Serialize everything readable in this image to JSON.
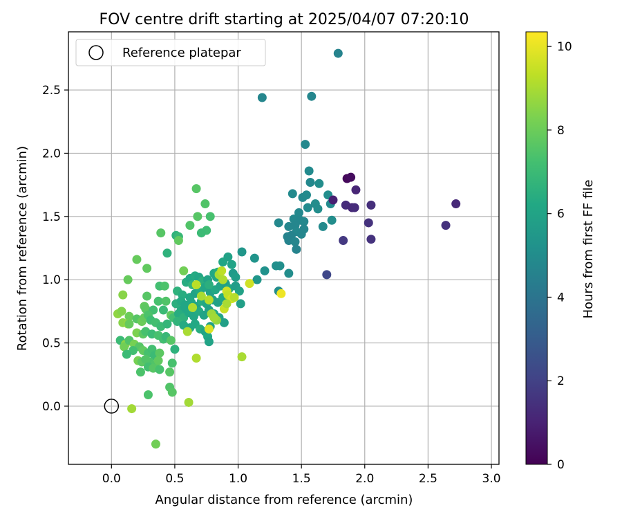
{
  "chart_data": {
    "type": "scatter",
    "title": "FOV centre drift starting at 2025/04/07 07:20:10",
    "xlabel": "Angular distance from reference (arcmin)",
    "ylabel": "Rotation from reference (arcmin)",
    "xlim": [
      -0.34,
      3.06
    ],
    "ylim": [
      -0.46,
      2.96
    ],
    "xticks": [
      0.0,
      0.5,
      1.0,
      1.5,
      2.0,
      2.5,
      3.0
    ],
    "xtick_labels": [
      "0.0",
      "0.5",
      "1.0",
      "1.5",
      "2.0",
      "2.5",
      "3.0"
    ],
    "yticks": [
      0.0,
      0.5,
      1.0,
      1.5,
      2.0,
      2.5
    ],
    "ytick_labels": [
      "0.0",
      "0.5",
      "1.0",
      "1.5",
      "2.0",
      "2.5"
    ],
    "grid": true,
    "legend": {
      "placement": "upper-left",
      "label": "Reference platepar"
    },
    "reference_point": {
      "x": 0.0,
      "y": 0.0
    },
    "colorbar": {
      "label": "Hours from first FF file",
      "min": 0,
      "max": 10.35,
      "ticks": [
        0,
        2,
        4,
        6,
        8,
        10
      ],
      "tick_labels": [
        "0",
        "2",
        "4",
        "6",
        "8",
        "10"
      ],
      "colormap": "viridis"
    },
    "points": [
      {
        "x": 1.79,
        "y": 2.79,
        "t": 4.6
      },
      {
        "x": 1.19,
        "y": 2.44,
        "t": 4.7
      },
      {
        "x": 1.58,
        "y": 2.45,
        "t": 4.7
      },
      {
        "x": 1.53,
        "y": 2.07,
        "t": 4.8
      },
      {
        "x": 1.56,
        "y": 1.86,
        "t": 4.9
      },
      {
        "x": 1.57,
        "y": 1.77,
        "t": 4.8
      },
      {
        "x": 1.43,
        "y": 1.68,
        "t": 4.9
      },
      {
        "x": 1.51,
        "y": 1.65,
        "t": 4.8
      },
      {
        "x": 1.54,
        "y": 1.67,
        "t": 4.9
      },
      {
        "x": 1.64,
        "y": 1.76,
        "t": 5.0
      },
      {
        "x": 1.71,
        "y": 1.67,
        "t": 5.0
      },
      {
        "x": 1.73,
        "y": 1.6,
        "t": 4.9
      },
      {
        "x": 1.61,
        "y": 1.6,
        "t": 5.0
      },
      {
        "x": 1.63,
        "y": 1.56,
        "t": 5.0
      },
      {
        "x": 1.55,
        "y": 1.57,
        "t": 4.9
      },
      {
        "x": 1.48,
        "y": 1.53,
        "t": 4.8
      },
      {
        "x": 1.44,
        "y": 1.48,
        "t": 4.8
      },
      {
        "x": 1.49,
        "y": 1.47,
        "t": 4.7
      },
      {
        "x": 1.52,
        "y": 1.46,
        "t": 4.8
      },
      {
        "x": 1.32,
        "y": 1.45,
        "t": 4.8
      },
      {
        "x": 1.4,
        "y": 1.42,
        "t": 4.7
      },
      {
        "x": 1.45,
        "y": 1.43,
        "t": 4.7
      },
      {
        "x": 1.52,
        "y": 1.4,
        "t": 4.7
      },
      {
        "x": 1.46,
        "y": 1.38,
        "t": 4.8
      },
      {
        "x": 1.42,
        "y": 1.35,
        "t": 4.6
      },
      {
        "x": 1.5,
        "y": 1.36,
        "t": 4.7
      },
      {
        "x": 1.39,
        "y": 1.34,
        "t": 4.6
      },
      {
        "x": 1.4,
        "y": 1.31,
        "t": 4.6
      },
      {
        "x": 1.45,
        "y": 1.3,
        "t": 4.7
      },
      {
        "x": 1.46,
        "y": 1.24,
        "t": 4.6
      },
      {
        "x": 1.67,
        "y": 1.42,
        "t": 4.9
      },
      {
        "x": 1.74,
        "y": 1.47,
        "t": 5.0
      },
      {
        "x": 1.3,
        "y": 1.11,
        "t": 5.1
      },
      {
        "x": 1.33,
        "y": 1.11,
        "t": 5.1
      },
      {
        "x": 1.4,
        "y": 1.05,
        "t": 5.0
      },
      {
        "x": 1.32,
        "y": 0.91,
        "t": 5.0
      },
      {
        "x": 1.21,
        "y": 1.07,
        "t": 5.2
      },
      {
        "x": 1.13,
        "y": 1.17,
        "t": 5.3
      },
      {
        "x": 1.03,
        "y": 1.22,
        "t": 5.4
      },
      {
        "x": 1.15,
        "y": 1.0,
        "t": 5.4
      },
      {
        "x": 1.86,
        "y": 1.8,
        "t": 0.2
      },
      {
        "x": 1.89,
        "y": 1.81,
        "t": 0.3
      },
      {
        "x": 1.93,
        "y": 1.71,
        "t": 1.1
      },
      {
        "x": 1.75,
        "y": 1.63,
        "t": 0.9
      },
      {
        "x": 1.85,
        "y": 1.59,
        "t": 1.3
      },
      {
        "x": 1.9,
        "y": 1.57,
        "t": 1.2
      },
      {
        "x": 1.92,
        "y": 1.57,
        "t": 1.3
      },
      {
        "x": 2.05,
        "y": 1.59,
        "t": 1.4
      },
      {
        "x": 2.72,
        "y": 1.6,
        "t": 1.2
      },
      {
        "x": 2.64,
        "y": 1.43,
        "t": 1.5
      },
      {
        "x": 2.03,
        "y": 1.45,
        "t": 1.5
      },
      {
        "x": 1.83,
        "y": 1.31,
        "t": 1.7
      },
      {
        "x": 2.05,
        "y": 1.32,
        "t": 1.5
      },
      {
        "x": 1.7,
        "y": 1.04,
        "t": 2.2
      },
      {
        "x": 0.67,
        "y": 1.72,
        "t": 7.6
      },
      {
        "x": 0.74,
        "y": 1.6,
        "t": 7.5
      },
      {
        "x": 0.78,
        "y": 1.5,
        "t": 7.3
      },
      {
        "x": 0.68,
        "y": 1.5,
        "t": 7.6
      },
      {
        "x": 0.62,
        "y": 1.43,
        "t": 7.5
      },
      {
        "x": 0.75,
        "y": 1.39,
        "t": 7.1
      },
      {
        "x": 0.71,
        "y": 1.37,
        "t": 7.0
      },
      {
        "x": 0.51,
        "y": 1.35,
        "t": 6.6
      },
      {
        "x": 0.53,
        "y": 1.34,
        "t": 6.9
      },
      {
        "x": 0.39,
        "y": 1.37,
        "t": 7.6
      },
      {
        "x": 0.53,
        "y": 1.31,
        "t": 7.8
      },
      {
        "x": 0.44,
        "y": 1.21,
        "t": 6.6
      },
      {
        "x": 0.2,
        "y": 1.16,
        "t": 7.9
      },
      {
        "x": 0.28,
        "y": 1.09,
        "t": 7.8
      },
      {
        "x": 0.13,
        "y": 1.0,
        "t": 7.9
      },
      {
        "x": 0.57,
        "y": 1.07,
        "t": 8.1
      },
      {
        "x": 0.38,
        "y": 0.95,
        "t": 7.2
      },
      {
        "x": 0.42,
        "y": 0.95,
        "t": 7.4
      },
      {
        "x": 0.28,
        "y": 0.87,
        "t": 7.6
      },
      {
        "x": 0.37,
        "y": 0.83,
        "t": 7.3
      },
      {
        "x": 0.43,
        "y": 0.83,
        "t": 7.5
      },
      {
        "x": 0.26,
        "y": 0.79,
        "t": 7.8
      },
      {
        "x": 0.27,
        "y": 0.77,
        "t": 7.7
      },
      {
        "x": 0.33,
        "y": 0.76,
        "t": 7.2
      },
      {
        "x": 0.41,
        "y": 0.76,
        "t": 7.0
      },
      {
        "x": 0.47,
        "y": 0.72,
        "t": 7.8
      },
      {
        "x": 0.49,
        "y": 0.7,
        "t": 7.2
      },
      {
        "x": 0.09,
        "y": 0.88,
        "t": 8.5
      },
      {
        "x": 0.05,
        "y": 0.73,
        "t": 8.6
      },
      {
        "x": 0.08,
        "y": 0.75,
        "t": 8.4
      },
      {
        "x": 0.14,
        "y": 0.71,
        "t": 8.0
      },
      {
        "x": 0.09,
        "y": 0.66,
        "t": 8.5
      },
      {
        "x": 0.13,
        "y": 0.65,
        "t": 8.7
      },
      {
        "x": 0.14,
        "y": 0.65,
        "t": 7.9
      },
      {
        "x": 0.2,
        "y": 0.69,
        "t": 7.6
      },
      {
        "x": 0.24,
        "y": 0.67,
        "t": 8.0
      },
      {
        "x": 0.26,
        "y": 0.7,
        "t": 7.9
      },
      {
        "x": 0.29,
        "y": 0.72,
        "t": 7.4
      },
      {
        "x": 0.31,
        "y": 0.68,
        "t": 7.1
      },
      {
        "x": 0.35,
        "y": 0.66,
        "t": 7.2
      },
      {
        "x": 0.39,
        "y": 0.63,
        "t": 7.0
      },
      {
        "x": 0.44,
        "y": 0.65,
        "t": 6.8
      },
      {
        "x": 0.2,
        "y": 0.58,
        "t": 8.3
      },
      {
        "x": 0.25,
        "y": 0.57,
        "t": 7.7
      },
      {
        "x": 0.27,
        "y": 0.59,
        "t": 7.3
      },
      {
        "x": 0.32,
        "y": 0.57,
        "t": 7.0
      },
      {
        "x": 0.37,
        "y": 0.56,
        "t": 7.3
      },
      {
        "x": 0.41,
        "y": 0.53,
        "t": 7.2
      },
      {
        "x": 0.43,
        "y": 0.55,
        "t": 6.9
      },
      {
        "x": 0.47,
        "y": 0.52,
        "t": 7.6
      },
      {
        "x": 0.5,
        "y": 0.45,
        "t": 6.6
      },
      {
        "x": 0.07,
        "y": 0.52,
        "t": 7.0
      },
      {
        "x": 0.11,
        "y": 0.49,
        "t": 8.6
      },
      {
        "x": 0.1,
        "y": 0.47,
        "t": 8.1
      },
      {
        "x": 0.14,
        "y": 0.52,
        "t": 7.5
      },
      {
        "x": 0.18,
        "y": 0.49,
        "t": 8.2
      },
      {
        "x": 0.22,
        "y": 0.47,
        "t": 7.6
      },
      {
        "x": 0.17,
        "y": 0.44,
        "t": 7.2
      },
      {
        "x": 0.12,
        "y": 0.41,
        "t": 7.0
      },
      {
        "x": 0.25,
        "y": 0.44,
        "t": 7.8
      },
      {
        "x": 0.29,
        "y": 0.42,
        "t": 7.3
      },
      {
        "x": 0.32,
        "y": 0.45,
        "t": 7.2
      },
      {
        "x": 0.34,
        "y": 0.4,
        "t": 7.0
      },
      {
        "x": 0.38,
        "y": 0.42,
        "t": 7.7
      },
      {
        "x": 0.3,
        "y": 0.35,
        "t": 7.4
      },
      {
        "x": 0.34,
        "y": 0.33,
        "t": 7.5
      },
      {
        "x": 0.37,
        "y": 0.36,
        "t": 7.8
      },
      {
        "x": 0.21,
        "y": 0.36,
        "t": 8.2
      },
      {
        "x": 0.24,
        "y": 0.35,
        "t": 7.7
      },
      {
        "x": 0.27,
        "y": 0.37,
        "t": 7.5
      },
      {
        "x": 0.29,
        "y": 0.31,
        "t": 7.2
      },
      {
        "x": 0.33,
        "y": 0.3,
        "t": 7.6
      },
      {
        "x": 0.38,
        "y": 0.29,
        "t": 7.3
      },
      {
        "x": 0.23,
        "y": 0.27,
        "t": 7.4
      },
      {
        "x": 0.46,
        "y": 0.27,
        "t": 7.6
      },
      {
        "x": 0.48,
        "y": 0.34,
        "t": 7.3
      },
      {
        "x": 0.46,
        "y": 0.15,
        "t": 7.5
      },
      {
        "x": 0.48,
        "y": 0.11,
        "t": 7.6
      },
      {
        "x": 0.29,
        "y": 0.09,
        "t": 7.4
      },
      {
        "x": 0.16,
        "y": -0.02,
        "t": 8.9
      },
      {
        "x": 0.35,
        "y": -0.3,
        "t": 8.1
      },
      {
        "x": 0.61,
        "y": 0.03,
        "t": 8.9
      },
      {
        "x": 0.55,
        "y": 0.76,
        "t": 6.3
      },
      {
        "x": 0.58,
        "y": 0.78,
        "t": 6.1
      },
      {
        "x": 0.59,
        "y": 0.98,
        "t": 6.4
      },
      {
        "x": 0.62,
        "y": 1.01,
        "t": 6.2
      },
      {
        "x": 0.66,
        "y": 1.03,
        "t": 6.3
      },
      {
        "x": 0.69,
        "y": 1.02,
        "t": 6.1
      },
      {
        "x": 0.72,
        "y": 0.99,
        "t": 6.5
      },
      {
        "x": 0.76,
        "y": 1.0,
        "t": 6.0
      },
      {
        "x": 0.81,
        "y": 1.05,
        "t": 6.2
      },
      {
        "x": 0.84,
        "y": 1.06,
        "t": 6.4
      },
      {
        "x": 0.88,
        "y": 1.14,
        "t": 6.1
      },
      {
        "x": 0.92,
        "y": 1.18,
        "t": 5.9
      },
      {
        "x": 0.95,
        "y": 1.12,
        "t": 6.0
      },
      {
        "x": 0.52,
        "y": 0.91,
        "t": 6.6
      },
      {
        "x": 0.56,
        "y": 0.88,
        "t": 6.4
      },
      {
        "x": 0.62,
        "y": 0.86,
        "t": 6.2
      },
      {
        "x": 0.66,
        "y": 0.89,
        "t": 6.0
      },
      {
        "x": 0.7,
        "y": 0.91,
        "t": 6.3
      },
      {
        "x": 0.74,
        "y": 0.94,
        "t": 6.1
      },
      {
        "x": 0.78,
        "y": 0.9,
        "t": 5.9
      },
      {
        "x": 0.82,
        "y": 0.92,
        "t": 6.2
      },
      {
        "x": 0.86,
        "y": 0.95,
        "t": 6.0
      },
      {
        "x": 0.9,
        "y": 0.97,
        "t": 5.8
      },
      {
        "x": 0.93,
        "y": 0.93,
        "t": 6.1
      },
      {
        "x": 0.98,
        "y": 0.95,
        "t": 5.7
      },
      {
        "x": 1.01,
        "y": 0.91,
        "t": 5.9
      },
      {
        "x": 0.51,
        "y": 0.81,
        "t": 6.5
      },
      {
        "x": 0.55,
        "y": 0.83,
        "t": 6.3
      },
      {
        "x": 0.58,
        "y": 0.8,
        "t": 6.1
      },
      {
        "x": 0.63,
        "y": 0.82,
        "t": 6.2
      },
      {
        "x": 0.67,
        "y": 0.79,
        "t": 6.0
      },
      {
        "x": 0.71,
        "y": 0.83,
        "t": 6.4
      },
      {
        "x": 0.75,
        "y": 0.81,
        "t": 6.1
      },
      {
        "x": 0.8,
        "y": 0.84,
        "t": 6.0
      },
      {
        "x": 0.84,
        "y": 0.82,
        "t": 5.9
      },
      {
        "x": 0.88,
        "y": 0.86,
        "t": 6.2
      },
      {
        "x": 0.92,
        "y": 0.84,
        "t": 5.8
      },
      {
        "x": 1.02,
        "y": 0.81,
        "t": 5.8
      },
      {
        "x": 0.53,
        "y": 0.73,
        "t": 6.4
      },
      {
        "x": 0.57,
        "y": 0.7,
        "t": 6.6
      },
      {
        "x": 0.61,
        "y": 0.74,
        "t": 6.2
      },
      {
        "x": 0.65,
        "y": 0.71,
        "t": 6.1
      },
      {
        "x": 0.69,
        "y": 0.75,
        "t": 6.3
      },
      {
        "x": 0.73,
        "y": 0.72,
        "t": 6.0
      },
      {
        "x": 0.77,
        "y": 0.76,
        "t": 5.9
      },
      {
        "x": 0.81,
        "y": 0.73,
        "t": 6.2
      },
      {
        "x": 0.85,
        "y": 0.7,
        "t": 6.0
      },
      {
        "x": 0.89,
        "y": 0.66,
        "t": 5.8
      },
      {
        "x": 0.52,
        "y": 0.67,
        "t": 6.7
      },
      {
        "x": 0.57,
        "y": 0.64,
        "t": 6.3
      },
      {
        "x": 0.62,
        "y": 0.62,
        "t": 6.1
      },
      {
        "x": 0.66,
        "y": 0.65,
        "t": 6.2
      },
      {
        "x": 0.7,
        "y": 0.61,
        "t": 6.4
      },
      {
        "x": 0.74,
        "y": 0.59,
        "t": 6.0
      },
      {
        "x": 0.78,
        "y": 0.63,
        "t": 5.9
      },
      {
        "x": 0.76,
        "y": 0.55,
        "t": 6.2
      },
      {
        "x": 0.77,
        "y": 0.51,
        "t": 6.0
      },
      {
        "x": 0.96,
        "y": 1.05,
        "t": 5.6
      },
      {
        "x": 0.98,
        "y": 1.02,
        "t": 5.7
      },
      {
        "x": 0.83,
        "y": 1.02,
        "t": 6.1
      },
      {
        "x": 0.77,
        "y": 0.96,
        "t": 6.5
      },
      {
        "x": 0.64,
        "y": 0.96,
        "t": 6.7
      },
      {
        "x": 0.67,
        "y": 0.96,
        "t": 9.3
      },
      {
        "x": 0.71,
        "y": 0.87,
        "t": 9.0
      },
      {
        "x": 0.77,
        "y": 0.84,
        "t": 9.2
      },
      {
        "x": 0.85,
        "y": 1.04,
        "t": 9.0
      },
      {
        "x": 0.87,
        "y": 1.07,
        "t": 9.3
      },
      {
        "x": 0.88,
        "y": 1.0,
        "t": 9.1
      },
      {
        "x": 0.91,
        "y": 0.91,
        "t": 9.6
      },
      {
        "x": 0.92,
        "y": 0.88,
        "t": 9.4
      },
      {
        "x": 0.95,
        "y": 0.85,
        "t": 9.7
      },
      {
        "x": 0.97,
        "y": 0.86,
        "t": 9.2
      },
      {
        "x": 0.89,
        "y": 0.77,
        "t": 9.5
      },
      {
        "x": 0.91,
        "y": 0.81,
        "t": 9.0
      },
      {
        "x": 0.79,
        "y": 0.73,
        "t": 8.8
      },
      {
        "x": 0.83,
        "y": 0.68,
        "t": 8.7
      },
      {
        "x": 0.81,
        "y": 0.7,
        "t": 8.9
      },
      {
        "x": 0.77,
        "y": 0.61,
        "t": 9.8
      },
      {
        "x": 0.64,
        "y": 0.78,
        "t": 9.1
      },
      {
        "x": 0.6,
        "y": 0.59,
        "t": 9.0
      },
      {
        "x": 0.67,
        "y": 0.38,
        "t": 9.1
      },
      {
        "x": 1.03,
        "y": 0.39,
        "t": 9.0
      },
      {
        "x": 1.09,
        "y": 0.97,
        "t": 9.6
      },
      {
        "x": 1.34,
        "y": 0.89,
        "t": 10.1
      }
    ]
  }
}
